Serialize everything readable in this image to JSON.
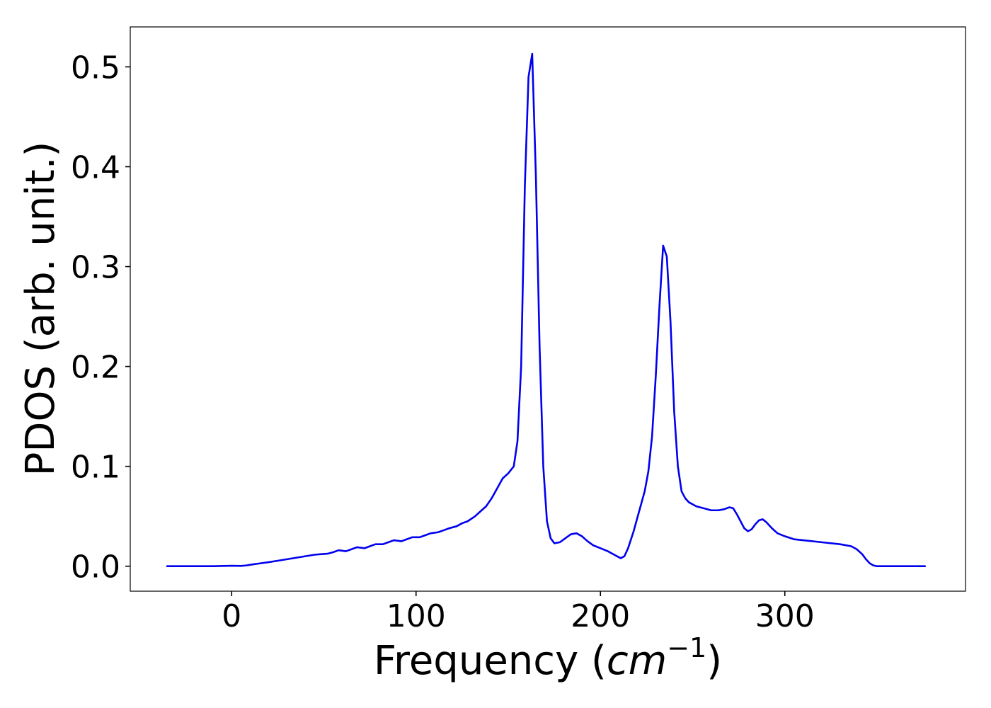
{
  "chart_data": {
    "type": "line",
    "xlabel": "Frequency (cm⁻¹)",
    "xlabel_parts": {
      "prefix": "Frequency (",
      "unit": "cm",
      "exponent": "−1",
      "suffix": ")"
    },
    "ylabel": "PDOS (arb. unit.)",
    "xlim": [
      -55,
      398
    ],
    "ylim": [
      -0.025,
      0.54
    ],
    "xticks": [
      0,
      100,
      200,
      300
    ],
    "xtick_labels": [
      "0",
      "100",
      "200",
      "300"
    ],
    "yticks": [
      0.0,
      0.1,
      0.2,
      0.3,
      0.4,
      0.5
    ],
    "ytick_labels": [
      "0.0",
      "0.1",
      "0.2",
      "0.3",
      "0.4",
      "0.5"
    ],
    "grid": false,
    "legend": null,
    "series": [
      {
        "color": "#0000ee",
        "x": [
          -35,
          -20,
          -10,
          0,
          5,
          8,
          12,
          16,
          20,
          25,
          30,
          35,
          40,
          45,
          48,
          52,
          55,
          58,
          62,
          65,
          68,
          72,
          75,
          78,
          82,
          85,
          88,
          92,
          95,
          98,
          102,
          105,
          108,
          112,
          115,
          118,
          122,
          125,
          128,
          132,
          135,
          138,
          141,
          144,
          147,
          150,
          153,
          155,
          157,
          159,
          161,
          163,
          165,
          167,
          169,
          171,
          173,
          175,
          178,
          181,
          184,
          187,
          190,
          193,
          196,
          200,
          204,
          208,
          211,
          213,
          215,
          218,
          221,
          224,
          226,
          228,
          230,
          232,
          234,
          236,
          238,
          240,
          242,
          244,
          246,
          248,
          252,
          256,
          260,
          264,
          267,
          270,
          272,
          274,
          276,
          278,
          280,
          282,
          284,
          286,
          288,
          290,
          293,
          296,
          300,
          305,
          310,
          320,
          330,
          336,
          339,
          342,
          344,
          346,
          348,
          350,
          355,
          360,
          376
        ],
        "y": [
          0.0,
          0.0,
          0.0,
          0.0005,
          0.0003,
          0.0008,
          0.002,
          0.003,
          0.004,
          0.0055,
          0.007,
          0.0085,
          0.01,
          0.0115,
          0.012,
          0.0125,
          0.014,
          0.016,
          0.015,
          0.017,
          0.019,
          0.018,
          0.02,
          0.022,
          0.022,
          0.024,
          0.026,
          0.025,
          0.027,
          0.029,
          0.029,
          0.031,
          0.033,
          0.034,
          0.036,
          0.038,
          0.04,
          0.043,
          0.045,
          0.05,
          0.055,
          0.06,
          0.068,
          0.078,
          0.088,
          0.093,
          0.1,
          0.125,
          0.2,
          0.38,
          0.49,
          0.513,
          0.39,
          0.22,
          0.1,
          0.045,
          0.028,
          0.023,
          0.024,
          0.028,
          0.032,
          0.033,
          0.03,
          0.025,
          0.021,
          0.018,
          0.015,
          0.011,
          0.008,
          0.01,
          0.018,
          0.035,
          0.055,
          0.075,
          0.095,
          0.13,
          0.19,
          0.26,
          0.321,
          0.31,
          0.245,
          0.155,
          0.1,
          0.075,
          0.068,
          0.064,
          0.06,
          0.058,
          0.056,
          0.056,
          0.057,
          0.059,
          0.058,
          0.052,
          0.045,
          0.038,
          0.035,
          0.037,
          0.042,
          0.046,
          0.047,
          0.044,
          0.038,
          0.033,
          0.03,
          0.027,
          0.026,
          0.024,
          0.022,
          0.02,
          0.017,
          0.012,
          0.007,
          0.003,
          0.0008,
          0.0,
          0.0,
          0.0,
          0.0
        ]
      }
    ]
  }
}
